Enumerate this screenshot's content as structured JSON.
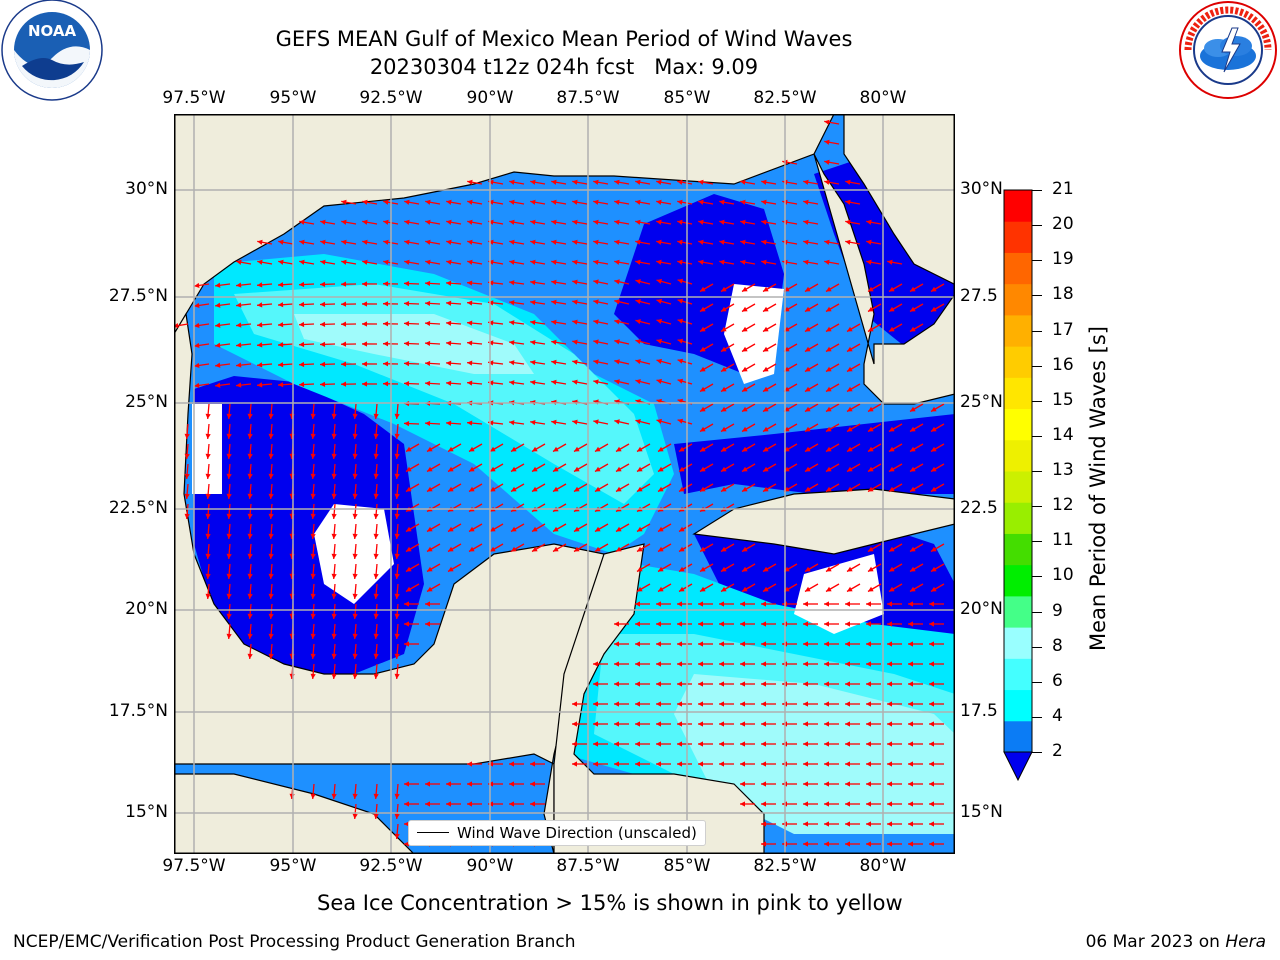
{
  "header": {
    "title_line1": "GEFS MEAN Gulf of Mexico Mean Period of Wind Waves",
    "title_line2": "20230304 t12z 024h fcst   Max: 9.09"
  },
  "logos": {
    "noaa": {
      "label": "NOAA",
      "ring_text": "NATIONAL OCEANIC AND ATMOSPHERIC ADMINISTRATION · U.S. DEPARTMENT OF COMMERCE"
    },
    "nws": {
      "ring_text": "NATIONAL WEATHER SERVICE"
    }
  },
  "map": {
    "longitude_ticks": [
      "97.5°W",
      "95°W",
      "92.5°W",
      "90°W",
      "87.5°W",
      "85°W",
      "82.5°W",
      "80°W"
    ],
    "latitude_ticks_left": [
      "30°N",
      "27.5°N",
      "25°N",
      "22.5°N",
      "20°N",
      "17.5°N",
      "15°N"
    ],
    "latitude_ticks_right": [
      "30°N",
      "27.5",
      "25°N",
      "22.5",
      "20°N",
      "17.5",
      "15°N"
    ],
    "legend_label": "Wind Wave Direction (unscaled)",
    "colors": {
      "land": "#efeddc",
      "below_2": "#0000ee",
      "bin_2_4": "#1e90ff",
      "bin_4_6": "#00e8ff",
      "bin_6_8": "#55f7fb",
      "bin_8_9": "#a0fbfb",
      "arrow": "#ff0000",
      "grid": "#b0b0b0"
    }
  },
  "colorbar": {
    "label": "Mean Period of Wind Waves [s]",
    "ticks": [
      "21",
      "20",
      "19",
      "18",
      "17",
      "16",
      "15",
      "14",
      "13",
      "12",
      "11",
      "10",
      "9",
      "8",
      "6",
      "4",
      "2"
    ],
    "colors_bottom_to_top": [
      "#0b7cf5",
      "#00ffff",
      "#44ffff",
      "#99ffff",
      "#44ff88",
      "#00ee00",
      "#44dd00",
      "#99ee00",
      "#ccf000",
      "#eef000",
      "#ffff00",
      "#ffe600",
      "#ffcc00",
      "#ffb000",
      "#ff8800",
      "#ff6600",
      "#ff3300",
      "#ff0000"
    ],
    "under_color": "#0000ee"
  },
  "footer": {
    "sea_ice_note": "Sea Ice Concentration > 15% is shown in pink to yellow",
    "left": "NCEP/EMC/Verification Post Processing Product Generation Branch",
    "date": "06 Mar 2023 on ",
    "host": "Hera"
  }
}
